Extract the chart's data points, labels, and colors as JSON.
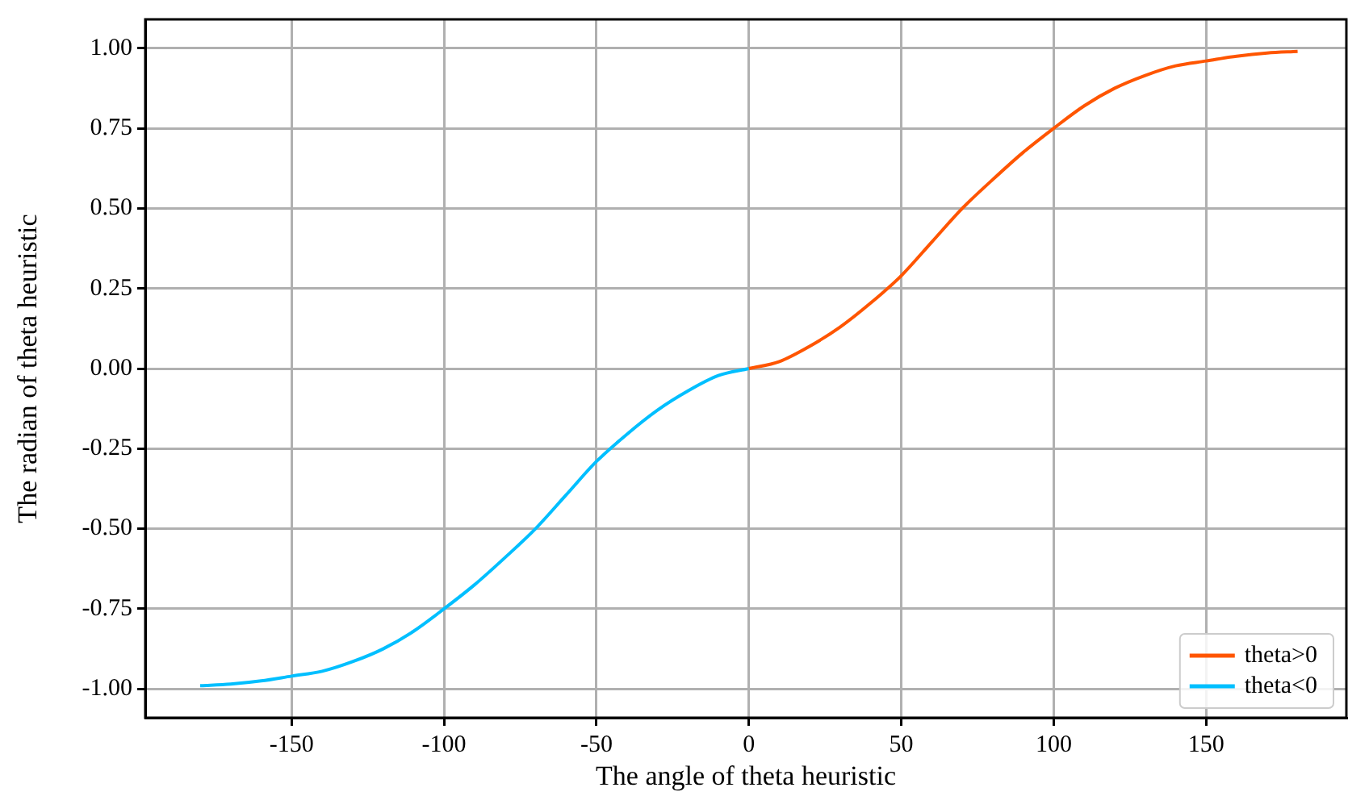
{
  "chart_data": {
    "type": "line",
    "xlabel": "The angle of theta heuristic",
    "ylabel": "The radian of theta heuristic",
    "xlim": [
      -198,
      196
    ],
    "ylim": [
      -1.09,
      1.09
    ],
    "xticks": [
      -150,
      -100,
      -50,
      0,
      50,
      100,
      150
    ],
    "yticks": [
      {
        "value": -1,
        "label": "-1.00"
      },
      {
        "value": -0.75,
        "label": "-0.75"
      },
      {
        "value": -0.5,
        "label": "-0.50"
      },
      {
        "value": -0.25,
        "label": "-0.25"
      },
      {
        "value": 0,
        "label": "0.00"
      },
      {
        "value": 0.25,
        "label": "0.25"
      },
      {
        "value": 0.5,
        "label": "0.50"
      },
      {
        "value": 0.75,
        "label": "0.75"
      },
      {
        "value": 1,
        "label": "1.00"
      }
    ],
    "grid": true,
    "legend": "bottom right",
    "marker": "none",
    "line_style": "solid",
    "series": [
      {
        "name": "theta>0",
        "color": "#ff5500",
        "x": [
          0,
          10,
          20,
          30,
          40,
          50,
          60,
          70,
          80,
          90,
          100,
          110,
          120,
          130,
          140,
          150,
          160,
          170,
          180
        ],
        "values": [
          0,
          0.022,
          0.07,
          0.13,
          0.205,
          0.29,
          0.395,
          0.5,
          0.59,
          0.675,
          0.75,
          0.82,
          0.875,
          0.915,
          0.945,
          0.96,
          0.975,
          0.985,
          0.99
        ]
      },
      {
        "name": "theta<0",
        "color": "#00bfff",
        "x": [
          0,
          -10,
          -20,
          -30,
          -40,
          -50,
          -60,
          -70,
          -80,
          -90,
          -100,
          -110,
          -120,
          -130,
          -140,
          -150,
          -160,
          -170,
          -180
        ],
        "values": [
          0,
          -0.022,
          -0.07,
          -0.13,
          -0.205,
          -0.29,
          -0.395,
          -0.5,
          -0.59,
          -0.675,
          -0.75,
          -0.82,
          -0.875,
          -0.915,
          -0.945,
          -0.96,
          -0.975,
          -0.985,
          -0.99
        ]
      }
    ]
  }
}
